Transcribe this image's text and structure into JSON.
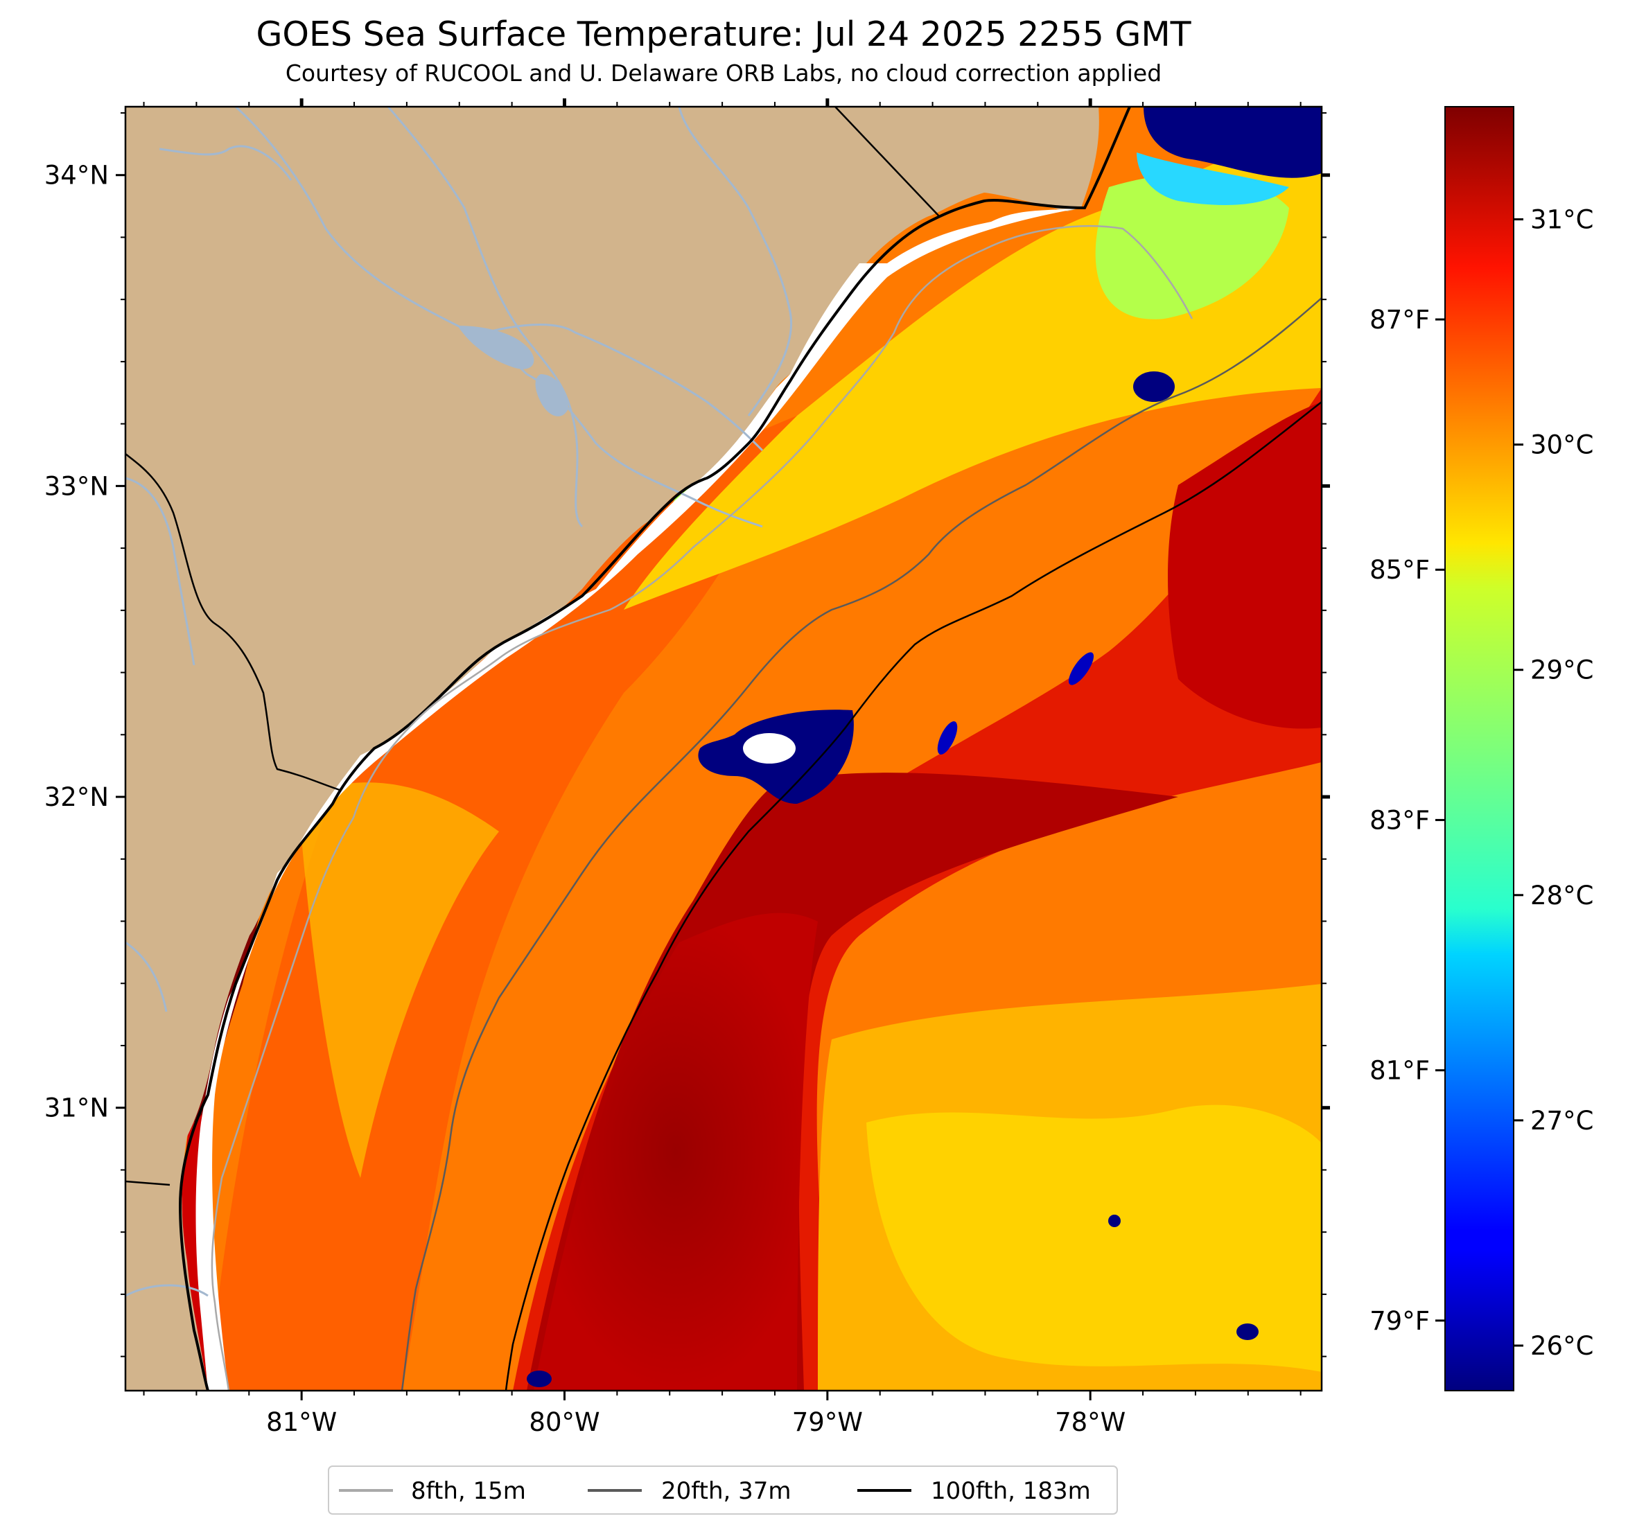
{
  "figure": {
    "title": "GOES Sea Surface Temperature: Jul 24 2025 2255 GMT",
    "subtitle": "Courtesy of RUCOOL and U. Delaware ORB Labs, no cloud correction applied"
  },
  "map": {
    "lon_range": [
      -81.67,
      -77.12
    ],
    "lat_range": [
      30.09,
      34.22
    ],
    "lon_ticks": [
      -81,
      -80,
      -79,
      -78
    ],
    "lon_tick_labels": [
      "81°W",
      "80°W",
      "79°W",
      "78°W"
    ],
    "lat_ticks": [
      31,
      32,
      33,
      34
    ],
    "lat_tick_labels": [
      "31°N",
      "32°N",
      "33°N",
      "34°N"
    ],
    "colors": {
      "land": "#d2b48c",
      "coastline": "#000000",
      "rivers": "#a3b8cf",
      "no_data": "#ffffff",
      "isobath_8fth": "#a9a9a9",
      "isobath_20fth": "#5a5a5a",
      "isobath_100fth": "#000000"
    }
  },
  "colorbar": {
    "colormap": "jet",
    "range_c": [
      25.8,
      31.5
    ],
    "celsius_ticks": [
      26,
      27,
      28,
      29,
      30,
      31
    ],
    "celsius_labels": [
      "26°C",
      "27°C",
      "28°C",
      "29°C",
      "30°C",
      "31°C"
    ],
    "fahrenheit_ticks": [
      79,
      81,
      83,
      85,
      87
    ],
    "fahrenheit_labels": [
      "79°F",
      "81°F",
      "83°F",
      "85°F",
      "87°F"
    ]
  },
  "legend": {
    "items": [
      {
        "label": "8fth, 15m",
        "color": "#a9a9a9"
      },
      {
        "label": "20fth, 37m",
        "color": "#5a5a5a"
      },
      {
        "label": "100fth, 183m",
        "color": "#000000"
      }
    ]
  }
}
